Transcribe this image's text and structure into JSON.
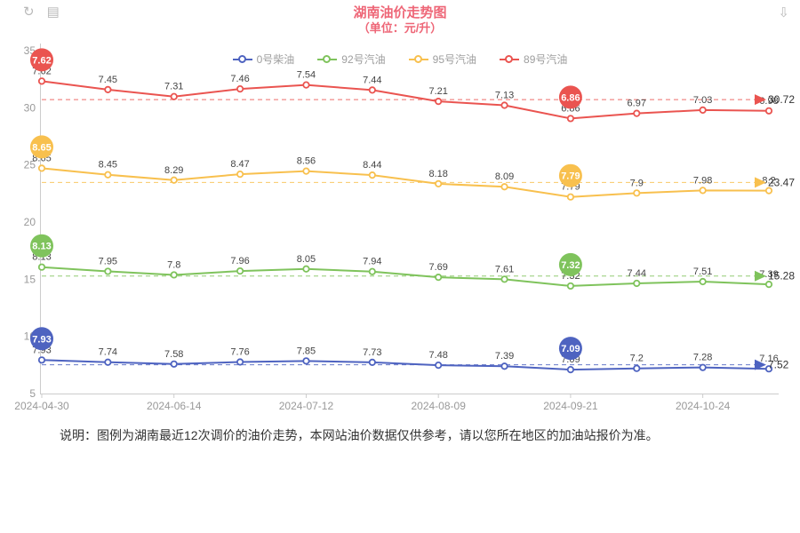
{
  "header": {
    "title": "湖南油价走势图",
    "subtitle": "（单位：元/升）",
    "title_color": "#ee6677"
  },
  "toolbox": {
    "refresh_icon": "↻",
    "data_view_icon": "▤",
    "download_icon": "⇩"
  },
  "chart_data": {
    "type": "line",
    "stacked": true,
    "grid": false,
    "legend_position": "top-center",
    "ylim": [
      5,
      35
    ],
    "y_ticks": [
      5,
      10,
      15,
      20,
      25,
      30,
      35
    ],
    "x_ticks": [
      {
        "index": 0,
        "label": "2024-04-30"
      },
      {
        "index": 2,
        "label": "2024-06-14"
      },
      {
        "index": 4,
        "label": "2024-07-12"
      },
      {
        "index": 6,
        "label": "2024-08-09"
      },
      {
        "index": 8,
        "label": "2024-09-21"
      },
      {
        "index": 10,
        "label": "2024-10-24"
      }
    ],
    "big_marker_indices": [
      0,
      8
    ],
    "series": [
      {
        "name": "0号柴油",
        "color": "#4e63c0",
        "values": [
          7.93,
          7.74,
          7.58,
          7.76,
          7.85,
          7.73,
          7.48,
          7.39,
          7.09,
          7.2,
          7.28,
          7.16
        ],
        "edge_tag": "7.52"
      },
      {
        "name": "92号汽油",
        "color": "#7fc35c",
        "values": [
          8.13,
          7.95,
          7.8,
          7.96,
          8.05,
          7.94,
          7.69,
          7.61,
          7.32,
          7.44,
          7.51,
          7.39
        ],
        "edge_tag": "15.28"
      },
      {
        "name": "95号汽油",
        "color": "#f8c04e",
        "values": [
          8.65,
          8.45,
          8.29,
          8.47,
          8.56,
          8.44,
          8.18,
          8.09,
          7.79,
          7.9,
          7.98,
          8.2
        ],
        "edge_tag": "23.47"
      },
      {
        "name": "89号汽油",
        "color": "#ea5450",
        "values": [
          7.62,
          7.45,
          7.31,
          7.46,
          7.54,
          7.44,
          7.21,
          7.13,
          6.86,
          6.97,
          7.03,
          6.98
        ],
        "edge_tag": "30.72"
      }
    ]
  },
  "footnote": "说明：图例为湖南最近12次调价的油价走势，本网站油价数据仅供参考，请以您所在地区的加油站报价为准。"
}
